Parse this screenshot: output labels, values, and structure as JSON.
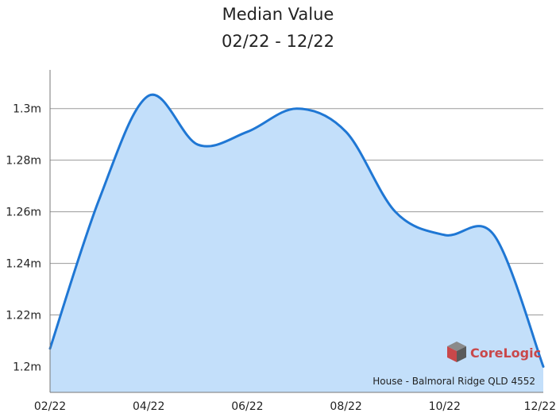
{
  "chart_data": {
    "type": "area",
    "title_lines": [
      "Median Value",
      "02/22 - 12/22"
    ],
    "xlabel": "",
    "ylabel": "",
    "x_tick_labels": [
      "02/22",
      "04/22",
      "06/22",
      "08/22",
      "10/22",
      "12/22"
    ],
    "y_ticks": [
      {
        "value": 1.2,
        "label": "1.2m"
      },
      {
        "value": 1.22,
        "label": "1.22m"
      },
      {
        "value": 1.24,
        "label": "1.24m"
      },
      {
        "value": 1.26,
        "label": "1.26m"
      },
      {
        "value": 1.28,
        "label": "1.28m"
      },
      {
        "value": 1.3,
        "label": "1.3m"
      }
    ],
    "ylim": [
      1.19,
      1.315
    ],
    "grid": true,
    "series": [
      {
        "x": [
          "02/22",
          "03/22",
          "04/22",
          "05/22",
          "06/22",
          "07/22",
          "08/22",
          "09/22",
          "10/22",
          "11/22",
          "12/22"
        ],
        "values": [
          1.207,
          1.265,
          1.305,
          1.286,
          1.291,
          1.3,
          1.291,
          1.26,
          1.251,
          1.251,
          1.2
        ]
      }
    ],
    "caption": "House - Balmoral Ridge QLD 4552",
    "colors": {
      "line": "#1f77d4",
      "fill": "#c3dffa",
      "grid": "#9a9a9a",
      "axis": "#777777"
    }
  },
  "logo": {
    "text": "CoreLogic",
    "colors": {
      "cube_top": "#8a8a8a",
      "cube_left": "#c9484a",
      "cube_right": "#5a5a5a",
      "text": "#c9484a"
    }
  }
}
